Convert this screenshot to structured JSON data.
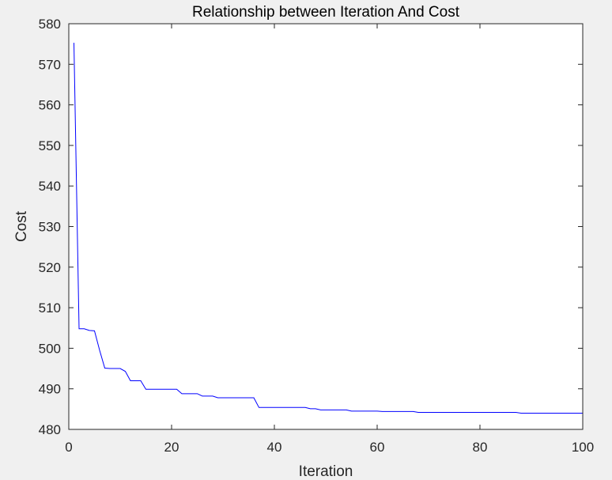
{
  "chart_data": {
    "type": "line",
    "title": "Relationship between Iteration And Cost",
    "xlabel": "Iteration",
    "ylabel": "Cost",
    "xlim": [
      0,
      100
    ],
    "ylim": [
      480,
      580
    ],
    "xticks": [
      0,
      20,
      40,
      60,
      80,
      100
    ],
    "yticks": [
      480,
      490,
      500,
      510,
      520,
      530,
      540,
      550,
      560,
      570,
      580
    ],
    "xtick_labels": [
      "0",
      "20",
      "40",
      "60",
      "80",
      "100"
    ],
    "ytick_labels": [
      "480",
      "490",
      "500",
      "510",
      "520",
      "530",
      "540",
      "550",
      "560",
      "570",
      "580"
    ],
    "grid": false,
    "line_color": "#0000ff",
    "series": [
      {
        "x": [
          1,
          2,
          3,
          4,
          5,
          6,
          7,
          8,
          9,
          10,
          11,
          12,
          13,
          14,
          15,
          16,
          17,
          18,
          19,
          20,
          21,
          22,
          23,
          24,
          25,
          26,
          27,
          28,
          29,
          30,
          31,
          32,
          33,
          34,
          35,
          36,
          37,
          38,
          39,
          40,
          41,
          42,
          43,
          44,
          45,
          46,
          47,
          48,
          49,
          50,
          51,
          52,
          53,
          54,
          55,
          56,
          57,
          58,
          59,
          60,
          61,
          62,
          63,
          64,
          65,
          66,
          67,
          68,
          69,
          70,
          71,
          72,
          73,
          74,
          75,
          76,
          77,
          78,
          79,
          80,
          81,
          82,
          83,
          84,
          85,
          86,
          87,
          88,
          89,
          90,
          91,
          92,
          93,
          94,
          95,
          96,
          97,
          98,
          99,
          100
        ],
        "values": [
          575.3,
          504.8,
          504.8,
          504.4,
          504.3,
          499.5,
          495.1,
          495.0,
          495.0,
          495.0,
          494.3,
          492.0,
          492.0,
          492.0,
          489.9,
          489.9,
          489.9,
          489.9,
          489.9,
          489.9,
          489.9,
          488.8,
          488.8,
          488.8,
          488.8,
          488.2,
          488.2,
          488.2,
          487.8,
          487.8,
          487.8,
          487.8,
          487.8,
          487.8,
          487.8,
          487.8,
          485.4,
          485.4,
          485.4,
          485.4,
          485.4,
          485.4,
          485.4,
          485.4,
          485.4,
          485.4,
          485.1,
          485.1,
          484.8,
          484.8,
          484.8,
          484.8,
          484.8,
          484.8,
          484.5,
          484.5,
          484.5,
          484.5,
          484.5,
          484.5,
          484.4,
          484.4,
          484.4,
          484.4,
          484.4,
          484.4,
          484.4,
          484.2,
          484.2,
          484.2,
          484.2,
          484.2,
          484.2,
          484.2,
          484.2,
          484.2,
          484.2,
          484.2,
          484.2,
          484.2,
          484.2,
          484.2,
          484.2,
          484.2,
          484.2,
          484.2,
          484.2,
          484.0,
          484.0,
          484.0,
          484.0,
          484.0,
          484.0,
          484.0,
          484.0,
          484.0,
          484.0,
          484.0,
          484.0,
          484.0
        ]
      }
    ]
  }
}
